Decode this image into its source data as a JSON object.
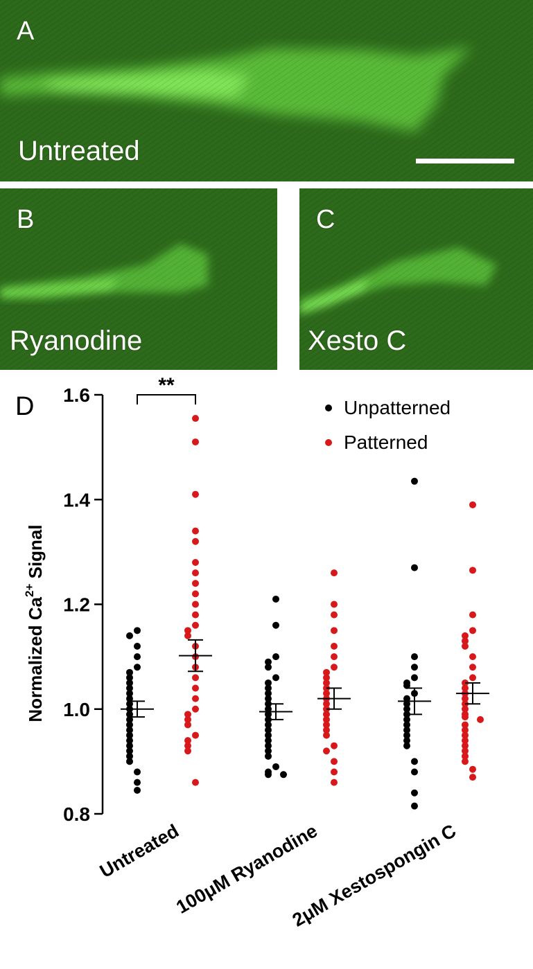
{
  "panels": {
    "a": {
      "letter": "A",
      "caption": "Untreated"
    },
    "b": {
      "letter": "B",
      "caption": "Ryanodine"
    },
    "c": {
      "letter": "C",
      "caption": "Xesto C"
    },
    "d": {
      "letter": "D"
    }
  },
  "colors": {
    "micrograph_bg": "#2f6b1c",
    "micrograph_signal": "#7ee65a",
    "unpatterned": "#000000",
    "patterned": "#d7191c"
  },
  "chart_data": {
    "type": "scatter",
    "ylabel_main": "Normalized Ca",
    "ylabel_sup": "2+",
    "ylabel_tail": " Signal",
    "ylim": [
      0.8,
      1.6
    ],
    "yticks": [
      "0.8",
      "1.0",
      "1.2",
      "1.4",
      "1.6"
    ],
    "ytick_values": [
      0.8,
      1.0,
      1.2,
      1.4,
      1.6
    ],
    "categories": [
      "Untreated",
      "100μM Ryanodine",
      "2μM Xestospongin C"
    ],
    "legend_position": "top-right",
    "significance": {
      "label": "**",
      "category": "Untreated"
    },
    "series": [
      {
        "name": "Unpatterned",
        "color": "#000000",
        "groups": [
          {
            "mean": 1.0,
            "sem_low": 0.985,
            "sem_high": 1.015,
            "values": [
              1.15,
              1.14,
              1.12,
              1.1,
              1.08,
              1.07,
              1.06,
              1.05,
              1.04,
              1.03,
              1.02,
              1.01,
              1.0,
              0.99,
              0.98,
              0.97,
              0.96,
              0.95,
              0.94,
              0.93,
              0.92,
              0.91,
              0.9,
              0.88,
              0.86,
              0.845
            ]
          },
          {
            "mean": 0.995,
            "sem_low": 0.98,
            "sem_high": 1.01,
            "values": [
              1.21,
              1.16,
              1.1,
              1.09,
              1.08,
              1.06,
              1.05,
              1.04,
              1.03,
              1.02,
              1.01,
              1.0,
              0.99,
              0.98,
              0.97,
              0.96,
              0.95,
              0.94,
              0.93,
              0.92,
              0.91,
              0.89,
              0.88,
              0.875,
              0.875
            ]
          },
          {
            "mean": 1.015,
            "sem_low": 0.99,
            "sem_high": 1.04,
            "values": [
              1.435,
              1.27,
              1.1,
              1.08,
              1.06,
              1.05,
              1.045,
              1.03,
              1.02,
              1.01,
              1.0,
              0.99,
              0.98,
              0.97,
              0.96,
              0.95,
              0.94,
              0.93,
              0.9,
              0.88,
              0.84,
              0.815
            ]
          }
        ]
      },
      {
        "name": "Patterned",
        "color": "#d7191c",
        "groups": [
          {
            "mean": 1.102,
            "sem_low": 1.072,
            "sem_high": 1.132,
            "values": [
              1.555,
              1.51,
              1.41,
              1.34,
              1.32,
              1.28,
              1.26,
              1.24,
              1.22,
              1.2,
              1.18,
              1.16,
              1.15,
              1.14,
              1.12,
              1.1,
              1.08,
              1.06,
              1.04,
              1.02,
              1.0,
              0.99,
              0.98,
              0.97,
              0.95,
              0.94,
              0.93,
              0.92,
              0.86
            ]
          },
          {
            "mean": 1.02,
            "sem_low": 1.0,
            "sem_high": 1.04,
            "values": [
              1.26,
              1.2,
              1.18,
              1.15,
              1.12,
              1.1,
              1.08,
              1.07,
              1.06,
              1.05,
              1.04,
              1.03,
              1.02,
              1.01,
              1.0,
              0.99,
              0.98,
              0.97,
              0.96,
              0.95,
              0.93,
              0.92,
              0.9,
              0.88,
              0.86
            ]
          },
          {
            "mean": 1.03,
            "sem_low": 1.01,
            "sem_high": 1.05,
            "values": [
              1.39,
              1.265,
              1.18,
              1.15,
              1.14,
              1.13,
              1.12,
              1.1,
              1.08,
              1.06,
              1.05,
              1.04,
              1.03,
              1.02,
              1.01,
              1.0,
              0.99,
              0.985,
              0.98,
              0.97,
              0.96,
              0.95,
              0.94,
              0.93,
              0.92,
              0.91,
              0.9,
              0.885,
              0.87
            ]
          }
        ]
      }
    ]
  }
}
